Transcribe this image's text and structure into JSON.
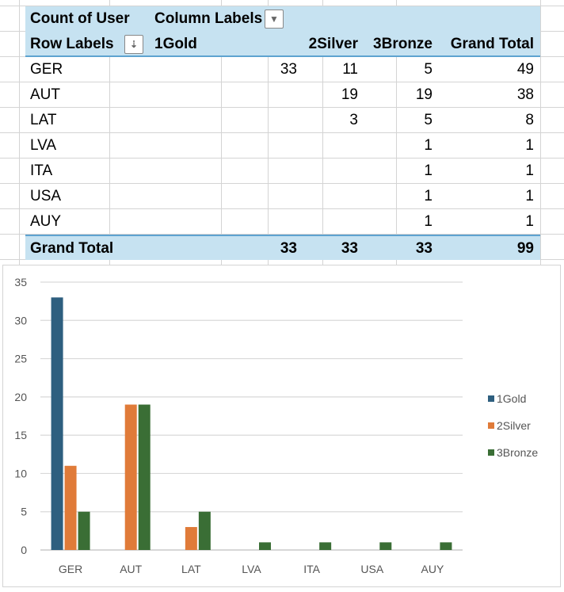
{
  "pivot": {
    "value_label": "Count of User",
    "column_labels": "Column Labels",
    "row_labels": "Row Labels",
    "columns": [
      "1Gold",
      "2Silver",
      "3Bronze",
      "Grand Total"
    ],
    "rows": [
      {
        "label": "GER",
        "values": [
          "33",
          "11",
          "5",
          "49"
        ]
      },
      {
        "label": "AUT",
        "values": [
          "",
          "19",
          "19",
          "38"
        ]
      },
      {
        "label": "LAT",
        "values": [
          "",
          "3",
          "5",
          "8"
        ]
      },
      {
        "label": "LVA",
        "values": [
          "",
          "",
          "1",
          "1"
        ]
      },
      {
        "label": "ITA",
        "values": [
          "",
          "",
          "1",
          "1"
        ]
      },
      {
        "label": "USA",
        "values": [
          "",
          "",
          "1",
          "1"
        ]
      },
      {
        "label": "AUY",
        "values": [
          "",
          "",
          "1",
          "1"
        ]
      }
    ],
    "total": {
      "label": "Grand Total",
      "values": [
        "33",
        "33",
        "33",
        "99"
      ]
    }
  },
  "chart_data": {
    "type": "bar",
    "categories": [
      "GER",
      "AUT",
      "LAT",
      "LVA",
      "ITA",
      "USA",
      "AUY"
    ],
    "series": [
      {
        "name": "1Gold",
        "color": "#2e5f7f",
        "values": [
          33,
          0,
          0,
          0,
          0,
          0,
          0
        ]
      },
      {
        "name": "2Silver",
        "color": "#e07b39",
        "values": [
          11,
          19,
          3,
          0,
          0,
          0,
          0
        ]
      },
      {
        "name": "3Bronze",
        "color": "#3a6e35",
        "values": [
          5,
          19,
          5,
          1,
          1,
          1,
          1
        ]
      }
    ],
    "ylim": [
      0,
      35
    ],
    "yticks": [
      "0",
      "5",
      "10",
      "15",
      "20",
      "25",
      "30",
      "35"
    ],
    "grid": true,
    "legend": "right"
  }
}
